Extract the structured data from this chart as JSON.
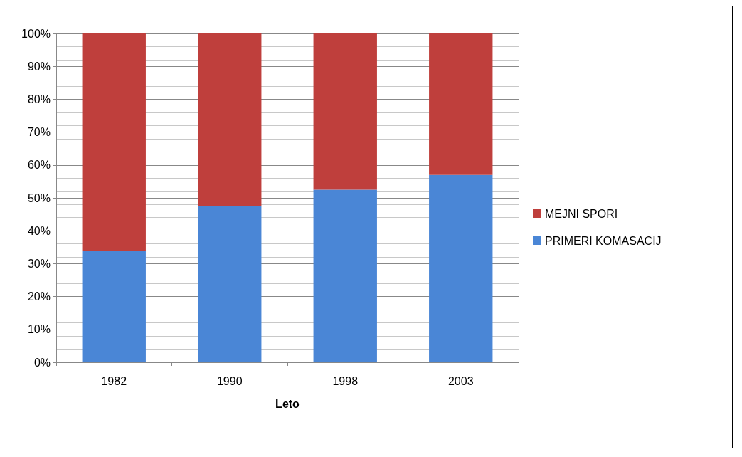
{
  "chart_data": {
    "type": "bar",
    "stacked": true,
    "xlabel": "Leto",
    "categories": [
      "1982",
      "1990",
      "1998",
      "2003"
    ],
    "series": [
      {
        "name": "PRIMERI KOMASACIJ",
        "color": "#4a86d6",
        "values": [
          34,
          47.5,
          52.5,
          57
        ]
      },
      {
        "name": "MEJNI SPORI",
        "color": "#bf3f3c",
        "values": [
          66,
          52.5,
          47.5,
          43
        ]
      }
    ],
    "ylim": [
      0,
      100
    ],
    "yticks": [
      {
        "value": 0,
        "label": "0%"
      },
      {
        "value": 10,
        "label": "10%"
      },
      {
        "value": 20,
        "label": "20%"
      },
      {
        "value": 30,
        "label": "30%"
      },
      {
        "value": 40,
        "label": "40%"
      },
      {
        "value": 50,
        "label": "50%"
      },
      {
        "value": 60,
        "label": "60%"
      },
      {
        "value": 70,
        "label": "70%"
      },
      {
        "value": 80,
        "label": "80%"
      },
      {
        "value": 90,
        "label": "90%"
      },
      {
        "value": 100,
        "label": "100%"
      }
    ],
    "grid": true,
    "legend": "right"
  }
}
